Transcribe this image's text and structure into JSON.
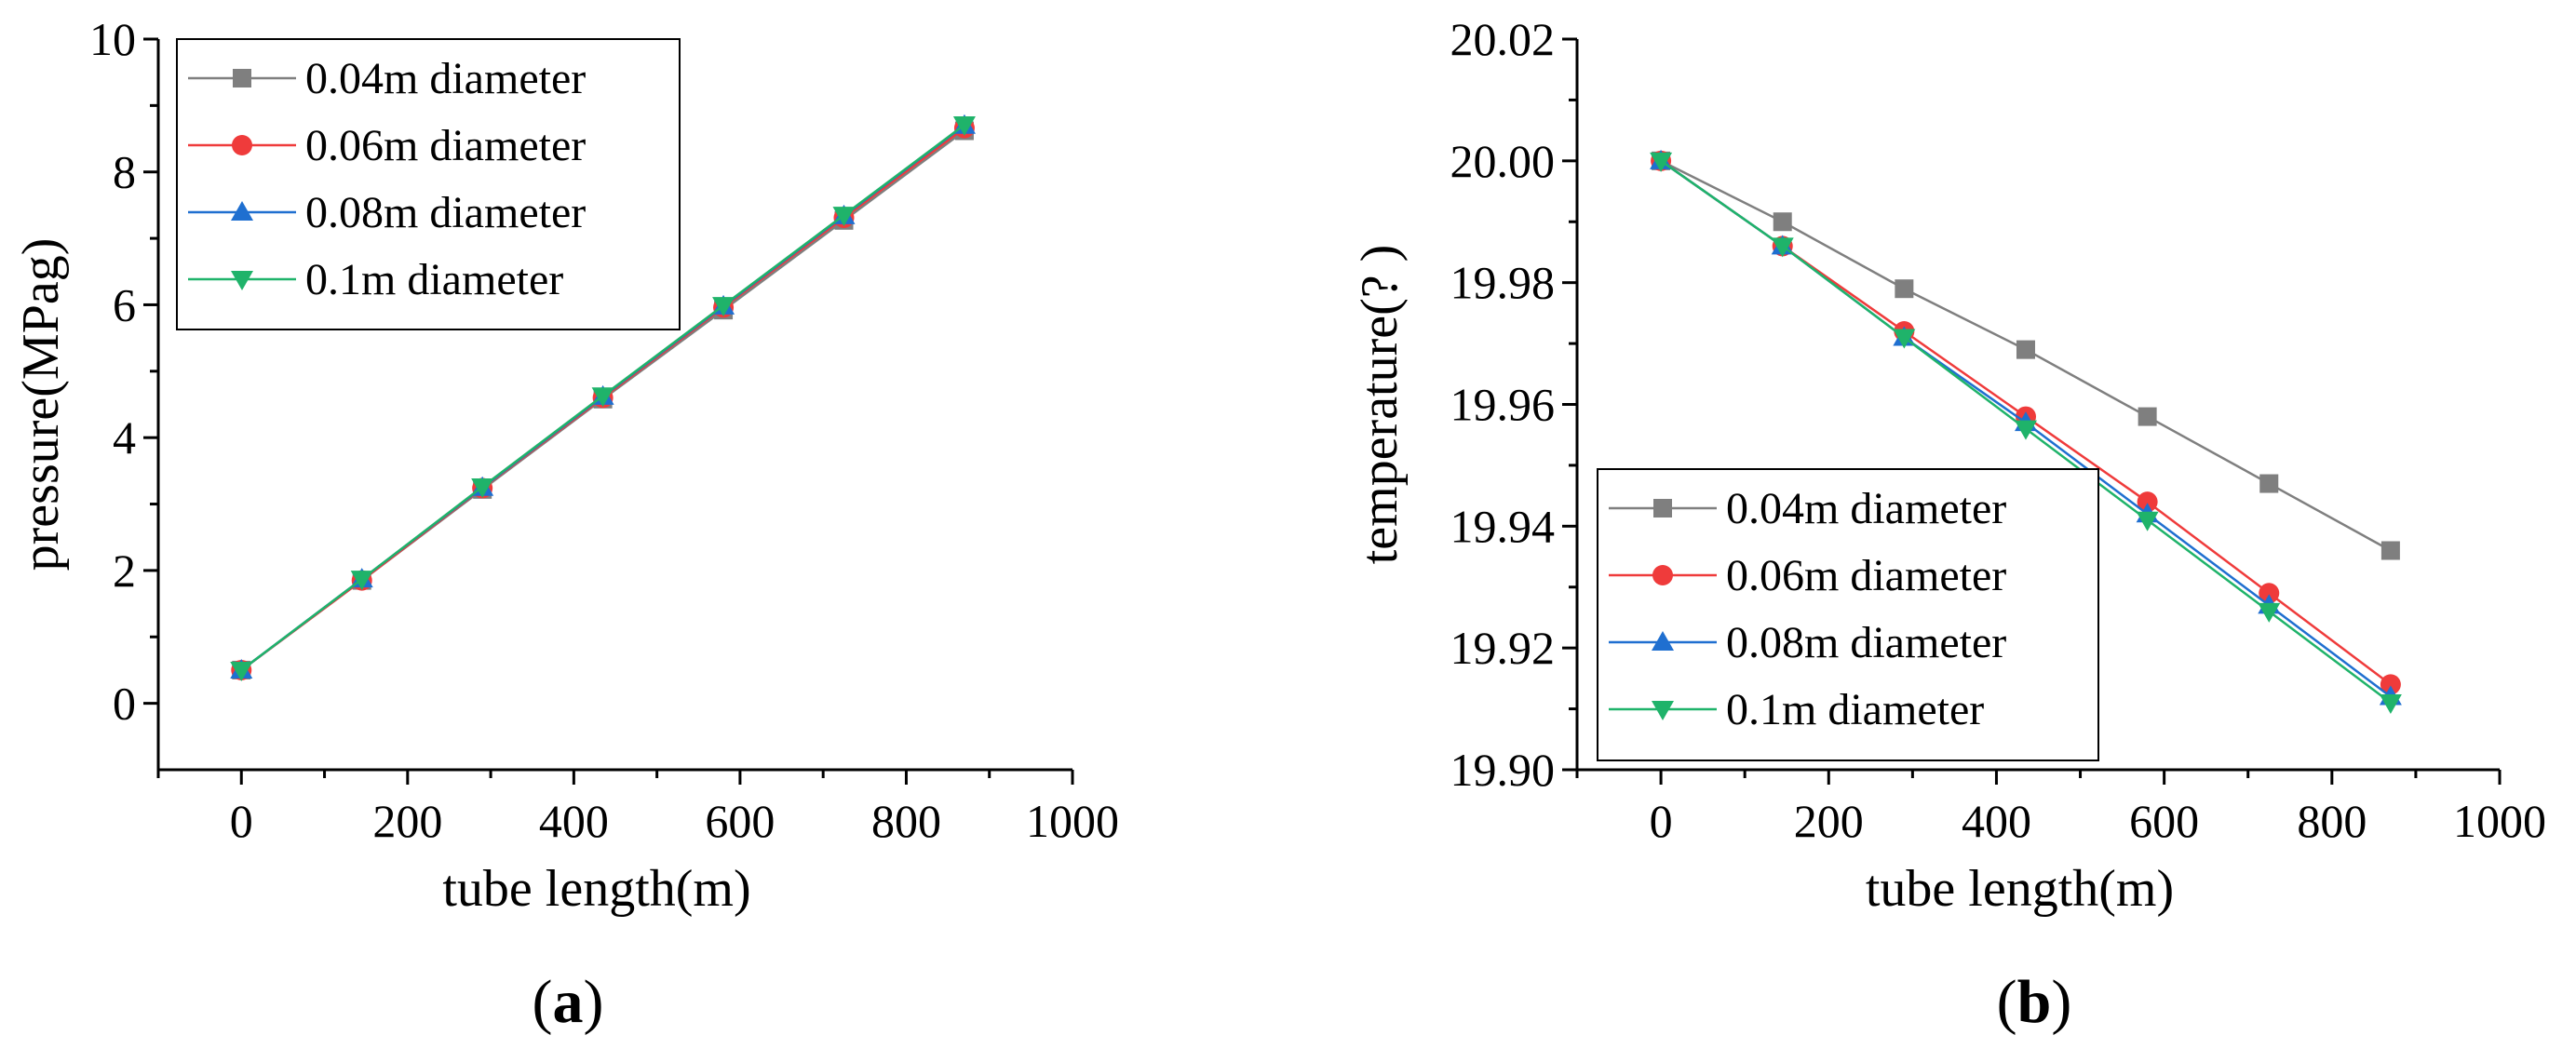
{
  "chart_data": [
    {
      "type": "line",
      "panel_label": [
        "(",
        "a",
        ")"
      ],
      "xlabel": "tube length(m)",
      "ylabel": "pressure(MPag)",
      "xlim": [
        -100,
        1000
      ],
      "ylim": [
        -1,
        10
      ],
      "xticks": [
        0,
        200,
        400,
        600,
        800,
        1000
      ],
      "xtick_labels": [
        "0",
        "200",
        "400",
        "600",
        "800",
        "1000"
      ],
      "yticks": [
        0,
        2,
        4,
        6,
        8,
        10
      ],
      "ytick_labels": [
        "0",
        "2",
        "4",
        "6",
        "8",
        "10"
      ],
      "grid": false,
      "legend_position": "top-left",
      "x": [
        0,
        145,
        290,
        435,
        580,
        725,
        870
      ],
      "series": [
        {
          "name": "0.04m diameter",
          "color": "#7f7f7f",
          "marker": "square",
          "values": [
            0.5,
            1.85,
            3.22,
            4.58,
            5.92,
            7.27,
            8.62
          ]
        },
        {
          "name": "0.06m diameter",
          "color": "#ef3b3b",
          "marker": "circle",
          "values": [
            0.5,
            1.85,
            3.24,
            4.6,
            5.96,
            7.31,
            8.66
          ]
        },
        {
          "name": "0.08m diameter",
          "color": "#1f6fd0",
          "marker": "triangle-up",
          "values": [
            0.5,
            1.87,
            3.25,
            4.62,
            5.98,
            7.34,
            8.7
          ]
        },
        {
          "name": "0.1m diameter",
          "color": "#1fb36a",
          "marker": "triangle-down",
          "values": [
            0.5,
            1.87,
            3.26,
            4.63,
            5.99,
            7.35,
            8.71
          ]
        }
      ]
    },
    {
      "type": "line",
      "panel_label": [
        "(",
        "b",
        ")"
      ],
      "xlabel": "tube length(m)",
      "ylabel": "temperature(?  )",
      "xlim": [
        -100,
        1000
      ],
      "ylim": [
        19.9,
        20.02
      ],
      "xticks": [
        0,
        200,
        400,
        600,
        800,
        1000
      ],
      "xtick_labels": [
        "0",
        "200",
        "400",
        "600",
        "800",
        "1000"
      ],
      "yticks": [
        19.9,
        19.92,
        19.94,
        19.96,
        19.98,
        20.0,
        20.02
      ],
      "ytick_labels": [
        "19.90",
        "19.92",
        "19.94",
        "19.96",
        "19.98",
        "20.00",
        "20.02"
      ],
      "grid": false,
      "legend_position": "bottom-left",
      "x": [
        0,
        145,
        290,
        435,
        580,
        725,
        870
      ],
      "series": [
        {
          "name": "0.04m diameter",
          "color": "#7f7f7f",
          "marker": "square",
          "values": [
            20.0,
            19.99,
            19.979,
            19.969,
            19.958,
            19.947,
            19.936
          ]
        },
        {
          "name": "0.06m diameter",
          "color": "#ef3b3b",
          "marker": "circle",
          "values": [
            20.0,
            19.986,
            19.972,
            19.958,
            19.944,
            19.929,
            19.914
          ]
        },
        {
          "name": "0.08m diameter",
          "color": "#1f6fd0",
          "marker": "triangle-up",
          "values": [
            20.0,
            19.986,
            19.971,
            19.957,
            19.942,
            19.927,
            19.912
          ]
        },
        {
          "name": "0.1m diameter",
          "color": "#1fb36a",
          "marker": "triangle-down",
          "values": [
            20.0,
            19.986,
            19.971,
            19.956,
            19.941,
            19.926,
            19.911
          ]
        }
      ]
    }
  ]
}
